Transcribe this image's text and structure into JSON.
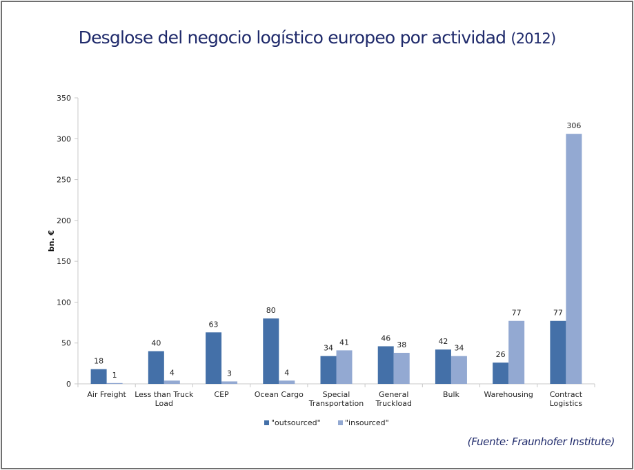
{
  "title": {
    "main": "Desglose del negocio logístico europeo por actividad",
    "year": "(2012)"
  },
  "source": "(Fuente: Fraunhofer Institute)",
  "colors": {
    "outsourced": "#4470a8",
    "insourced": "#93a9d2",
    "title": "#1f2a6b",
    "axis": "#c8c8c8"
  },
  "chart_data": {
    "type": "bar",
    "title": "Desglose del negocio logístico europeo por actividad (2012)",
    "xlabel": "",
    "ylabel": "bn. €",
    "ylim": [
      0,
      350
    ],
    "yticks": [
      0,
      50,
      100,
      150,
      200,
      250,
      300,
      350
    ],
    "grid": false,
    "legend_position": "bottom",
    "categories": [
      [
        "Air Freight"
      ],
      [
        "Less than Truck",
        "Load"
      ],
      [
        "CEP"
      ],
      [
        "Ocean Cargo"
      ],
      [
        "Special",
        "Transportation"
      ],
      [
        "General",
        "Truckload"
      ],
      [
        "Bulk"
      ],
      [
        "Warehousing"
      ],
      [
        "Contract",
        "Logistics"
      ]
    ],
    "series": [
      {
        "name": "\"outsourced\"",
        "values": [
          18,
          40,
          63,
          80,
          34,
          46,
          42,
          26,
          77
        ]
      },
      {
        "name": "\"insourced\"",
        "values": [
          1,
          4,
          3,
          4,
          41,
          38,
          34,
          77,
          306
        ]
      }
    ]
  }
}
